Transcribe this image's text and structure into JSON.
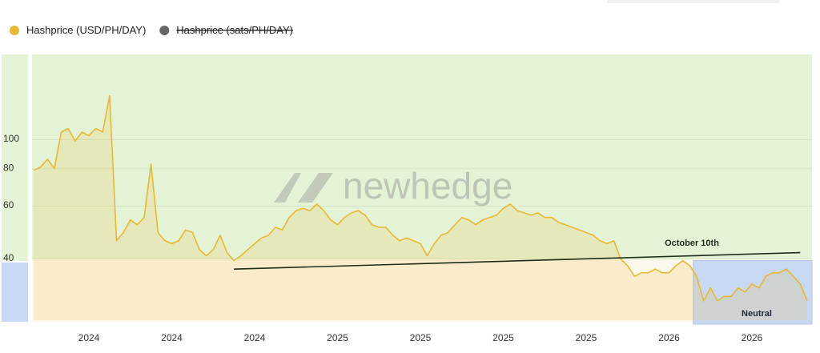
{
  "chart_data": {
    "type": "line",
    "log_scale": true,
    "grid": true,
    "watermark": "newhedge",
    "categories": [
      null,
      null,
      null,
      null,
      null,
      null,
      null,
      null,
      "2024",
      null,
      null,
      null,
      null,
      null,
      null,
      null,
      null,
      null,
      null,
      null,
      "2024",
      null,
      null,
      null,
      null,
      null,
      null,
      null,
      null,
      null,
      null,
      null,
      "2024",
      null,
      null,
      null,
      null,
      null,
      null,
      null,
      null,
      null,
      null,
      null,
      "2025",
      null,
      null,
      null,
      null,
      null,
      null,
      null,
      null,
      null,
      null,
      null,
      "2025",
      null,
      null,
      null,
      null,
      null,
      null,
      null,
      null,
      null,
      null,
      null,
      "2025",
      null,
      null,
      null,
      null,
      null,
      null,
      null,
      null,
      null,
      null,
      null,
      "2025",
      null,
      null,
      null,
      null,
      null,
      null,
      null,
      null,
      null,
      null,
      null,
      "2026",
      null,
      null,
      null,
      null,
      null,
      null,
      null,
      null,
      null,
      null,
      null,
      "2026",
      null,
      null,
      null,
      null,
      null,
      null,
      null,
      null
    ],
    "series": [
      {
        "name": "Hashprice (USD/PH/DAY)",
        "color": "#e9b834",
        "values": [
          79,
          81,
          86,
          80,
          106,
          109,
          99,
          106,
          103,
          109,
          106,
          140,
          46,
          49,
          54,
          52,
          55,
          83,
          49,
          46,
          45,
          46,
          50,
          49,
          43,
          41,
          43,
          48,
          42,
          39.5,
          41,
          43,
          45,
          47,
          48,
          51,
          50,
          55,
          58,
          59,
          58,
          61,
          58,
          54,
          52,
          55,
          57,
          58,
          56,
          52,
          51,
          51,
          48,
          46,
          47,
          46,
          45,
          41,
          45,
          48,
          49,
          52,
          55,
          54,
          52,
          54,
          55,
          56,
          59,
          61,
          58,
          57,
          56,
          57,
          55,
          55,
          53,
          52,
          51,
          50,
          49,
          48,
          46,
          45,
          46,
          40,
          38,
          35,
          36,
          36,
          37,
          36,
          36,
          38,
          39.5,
          38,
          35,
          29,
          32,
          29,
          30,
          30,
          32,
          31,
          33,
          32,
          35,
          36,
          36,
          37,
          35,
          33,
          29
        ]
      },
      {
        "name": "Hashprice (sats/PH/DAY)",
        "color": "#666666",
        "hidden": true
      }
    ],
    "ylim": [
      25,
      190
    ],
    "yticks": [
      40,
      60,
      80,
      100
    ],
    "zones": [
      {
        "range": [
          40,
          190
        ],
        "color": "#e4f3d6"
      },
      {
        "range": [
          25,
          40
        ],
        "color": "#fdf8ec"
      }
    ],
    "trend_line": {
      "label": "October 10th",
      "x": [
        29,
        111
      ],
      "values": [
        37,
        42
      ],
      "color": "#1f2d1a"
    },
    "highlight": {
      "label": "Neutral",
      "start": 95.5,
      "range": [
        25,
        40
      ],
      "color": "#c9d8f3"
    }
  }
}
